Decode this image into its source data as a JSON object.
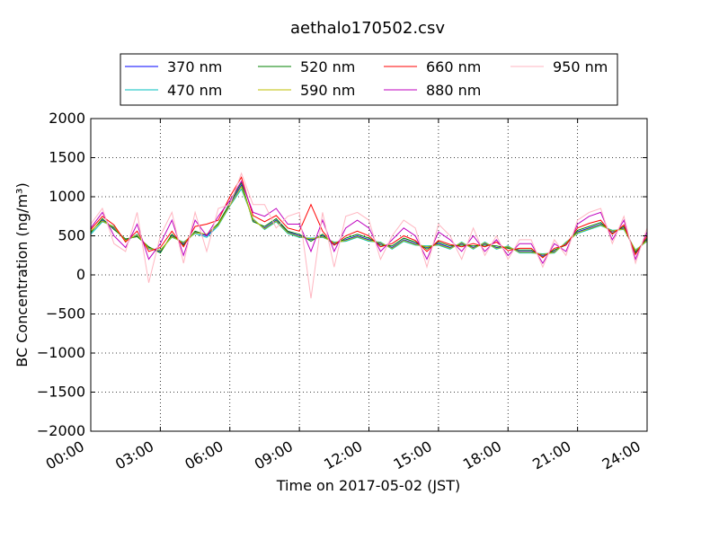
{
  "chart_data": {
    "type": "line",
    "title": "aethalo170502.csv",
    "xlabel": "Time on 2017-05-02 (JST)",
    "ylabel": "BC Concentration (ng/m³)",
    "xlim": [
      "2017-05-02 00:00",
      "2017-05-03 00:00"
    ],
    "ylim": [
      -2000,
      2000
    ],
    "x_ticks": [
      "00:00",
      "03:00",
      "06:00",
      "09:00",
      "12:00",
      "15:00",
      "18:00",
      "21:00",
      "24:00"
    ],
    "y_ticks": [
      "2000",
      "1500",
      "1000",
      "500",
      "0",
      "−500",
      "−1000",
      "−1500",
      "−2000"
    ],
    "grid": true,
    "legend_position": "top-center",
    "x": [
      "00:00",
      "00:30",
      "01:00",
      "01:30",
      "02:00",
      "02:30",
      "03:00",
      "03:30",
      "04:00",
      "04:30",
      "05:00",
      "05:30",
      "06:00",
      "06:30",
      "07:00",
      "07:30",
      "08:00",
      "08:30",
      "09:00",
      "09:30",
      "10:00",
      "10:30",
      "11:00",
      "11:30",
      "12:00",
      "12:30",
      "13:00",
      "13:30",
      "14:00",
      "14:30",
      "15:00",
      "15:30",
      "16:00",
      "16:30",
      "17:00",
      "17:30",
      "18:00",
      "18:30",
      "19:00",
      "19:30",
      "20:00",
      "20:30",
      "21:00",
      "21:30",
      "22:00",
      "22:30",
      "23:00",
      "23:30",
      "24:00"
    ],
    "series": [
      {
        "name": "370 nm",
        "color": "#0000ff",
        "values": [
          550,
          700,
          600,
          450,
          500,
          350,
          300,
          500,
          400,
          550,
          500,
          650,
          900,
          1150,
          700,
          600,
          700,
          550,
          500,
          450,
          500,
          400,
          450,
          500,
          450,
          400,
          350,
          450,
          400,
          350,
          400,
          350,
          400,
          350,
          400,
          350,
          350,
          300,
          300,
          250,
          300,
          400,
          550,
          600,
          650,
          550,
          600,
          300,
          450
        ]
      },
      {
        "name": "470 nm",
        "color": "#00bfbf",
        "values": [
          520,
          680,
          620,
          430,
          520,
          330,
          320,
          480,
          420,
          530,
          480,
          630,
          880,
          1100,
          720,
          580,
          680,
          530,
          480,
          470,
          480,
          420,
          430,
          480,
          430,
          420,
          330,
          430,
          380,
          370,
          380,
          330,
          420,
          330,
          420,
          330,
          370,
          280,
          280,
          270,
          280,
          420,
          530,
          580,
          630,
          570,
          580,
          320,
          430
        ]
      },
      {
        "name": "520 nm",
        "color": "#008000",
        "values": [
          540,
          720,
          580,
          460,
          490,
          360,
          280,
          520,
          380,
          560,
          510,
          660,
          920,
          1180,
          680,
          620,
          720,
          560,
          520,
          430,
          520,
          380,
          470,
          520,
          470,
          380,
          370,
          470,
          420,
          330,
          420,
          370,
          380,
          370,
          380,
          370,
          340,
          320,
          320,
          230,
          320,
          380,
          570,
          620,
          670,
          530,
          620,
          280,
          470
        ]
      },
      {
        "name": "590 nm",
        "color": "#bfbf00",
        "values": [
          560,
          690,
          610,
          440,
          510,
          340,
          310,
          490,
          410,
          540,
          520,
          640,
          890,
          1130,
          710,
          590,
          690,
          540,
          490,
          460,
          490,
          410,
          440,
          490,
          440,
          410,
          340,
          440,
          390,
          360,
          390,
          340,
          410,
          340,
          410,
          340,
          360,
          290,
          290,
          260,
          290,
          410,
          540,
          590,
          640,
          560,
          590,
          310,
          440
        ]
      },
      {
        "name": "660 nm",
        "color": "#ff0000",
        "values": [
          580,
          750,
          640,
          420,
          560,
          300,
          350,
          560,
          360,
          620,
          650,
          700,
          1000,
          1250,
          760,
          680,
          760,
          600,
          560,
          900,
          560,
          380,
          500,
          560,
          500,
          360,
          400,
          500,
          440,
          300,
          440,
          390,
          360,
          400,
          360,
          420,
          310,
          340,
          340,
          220,
          340,
          380,
          600,
          660,
          700,
          520,
          640,
          260,
          500
        ]
      },
      {
        "name": "880 nm",
        "color": "#bf00bf",
        "values": [
          600,
          800,
          500,
          350,
          650,
          200,
          400,
          700,
          250,
          700,
          500,
          750,
          950,
          1200,
          800,
          750,
          850,
          650,
          650,
          300,
          700,
          300,
          600,
          700,
          600,
          300,
          450,
          600,
          500,
          200,
          550,
          450,
          300,
          500,
          300,
          450,
          250,
          400,
          400,
          150,
          400,
          300,
          650,
          750,
          800,
          450,
          700,
          200,
          550
        ]
      },
      {
        "name": "950 nm",
        "color": "#ffb6c1",
        "values": [
          650,
          850,
          400,
          300,
          800,
          -100,
          500,
          800,
          150,
          800,
          300,
          850,
          900,
          1300,
          900,
          900,
          600,
          750,
          800,
          -300,
          800,
          100,
          750,
          800,
          700,
          200,
          500,
          700,
          600,
          100,
          650,
          500,
          200,
          600,
          250,
          500,
          200,
          450,
          450,
          100,
          450,
          250,
          700,
          800,
          850,
          400,
          750,
          150,
          600
        ]
      }
    ]
  }
}
